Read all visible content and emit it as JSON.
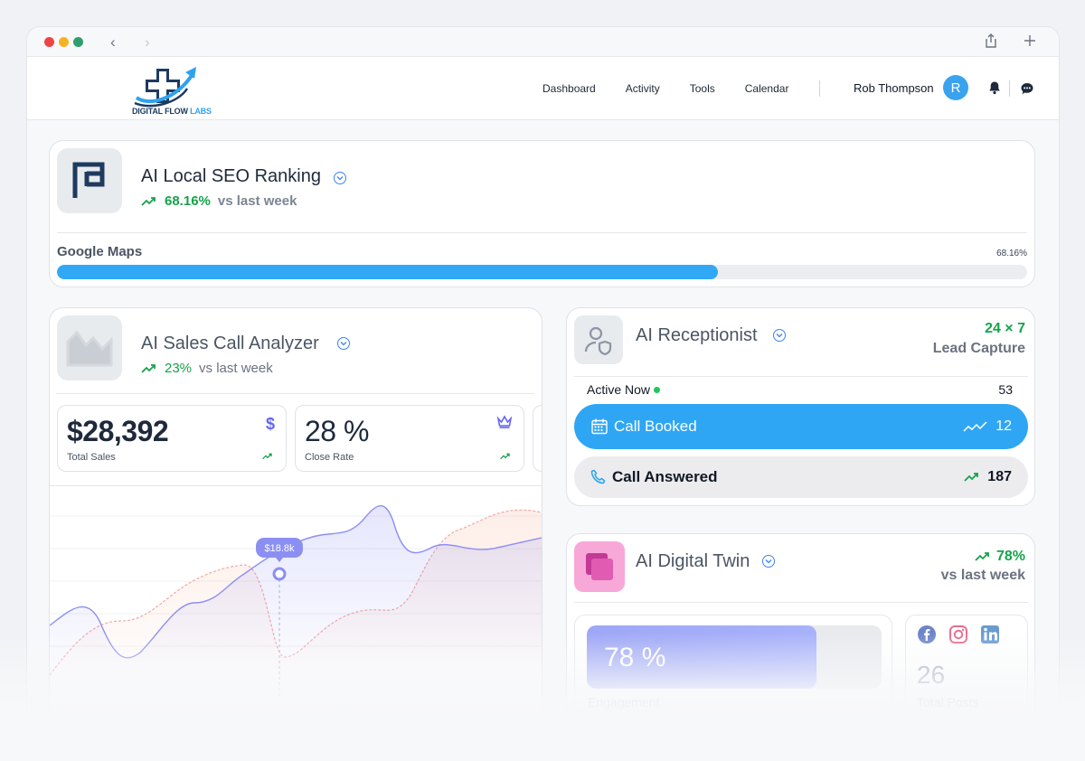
{
  "app": {
    "logo_text_main": "DIGITAL FLOW ",
    "logo_text_accent": "LABS"
  },
  "nav": {
    "items": [
      "Dashboard",
      "Activity",
      "Tools",
      "Calendar"
    ]
  },
  "user": {
    "name": "Rob Thompson",
    "avatar_initial": "R"
  },
  "seo_card": {
    "title": "AI Local SEO Ranking",
    "trend_pct": "68.16%",
    "trend_text": "vs last week",
    "bar_label": "Google Maps",
    "bar_value_text": "68.16%",
    "bar_fraction": 0.6816
  },
  "sales_card": {
    "title": "AI Sales Call Analyzer",
    "trend_pct": "23%",
    "trend_text": "vs last week",
    "stats": [
      {
        "value": "$28,392",
        "label": "Total Sales",
        "icon": "dollar-icon"
      },
      {
        "value": "28 %",
        "label": "Close Rate",
        "icon": "crown-icon"
      }
    ],
    "tooltip": "$18.8k"
  },
  "receptionist_card": {
    "title": "AI Receptionist",
    "availability": "24 × 7",
    "subtitle": "Lead Capture",
    "active_label": "Active Now",
    "active_count": "53",
    "rows": [
      {
        "label": "Call Booked",
        "value": "12",
        "icon": "calendar-icon"
      },
      {
        "label": "Call Answered",
        "value": "187",
        "icon": "phone-icon"
      }
    ]
  },
  "twin_card": {
    "title": "AI Digital Twin",
    "trend_pct": "78%",
    "trend_text": "vs last week",
    "engagement_value": "78 %",
    "engagement_fraction": 0.78,
    "engagement_label": "Engagement",
    "posts_value": "26",
    "posts_label": "Total Posts",
    "socials": [
      "facebook-icon",
      "instagram-icon",
      "linkedin-icon"
    ]
  },
  "colors": {
    "accent_blue": "#2fa6f4",
    "positive_green": "#16a34a",
    "indigo": "#6366f1"
  }
}
